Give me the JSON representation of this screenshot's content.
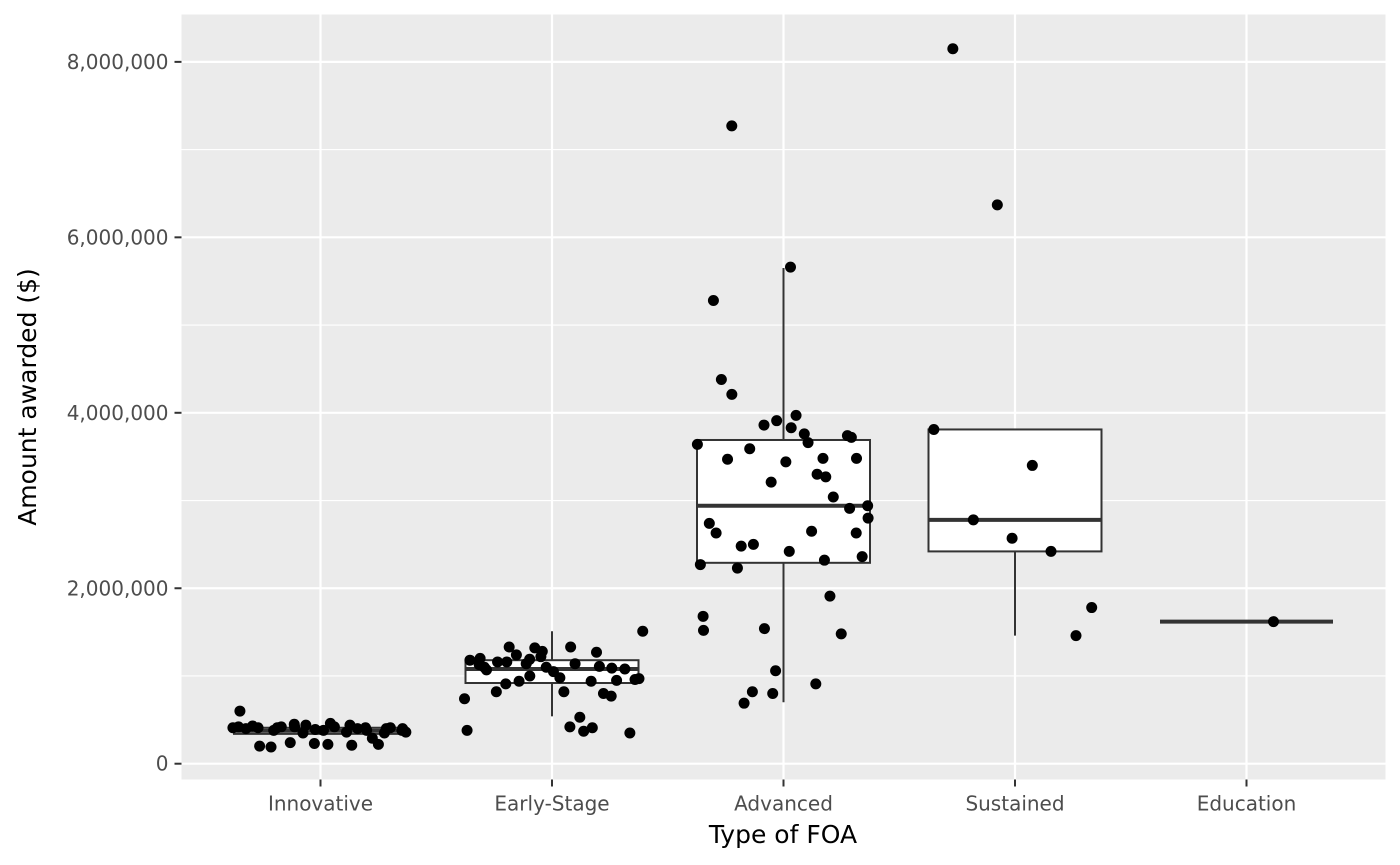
{
  "chart_data": {
    "type": "box",
    "xlabel": "Type of FOA",
    "ylabel": "Amount awarded ($)",
    "categories": [
      "Innovative",
      "Early-Stage",
      "Advanced",
      "Sustained",
      "Education"
    ],
    "y_ticks": [
      0,
      2000000,
      4000000,
      6000000,
      8000000
    ],
    "y_tick_labels": [
      "0",
      "2,000,000",
      "4,000,000",
      "6,000,000",
      "8,000,000"
    ],
    "ylim": [
      -180000,
      8540000
    ],
    "grid": true,
    "legend": "none",
    "colors": {
      "panel": "#ebebeb",
      "grid": "#ffffff",
      "box_fill": "#ffffff",
      "box_line": "#333333",
      "point": "#000000"
    },
    "boxes": [
      {
        "category": "Innovative",
        "lower_whisker": 330000,
        "q1": 340000,
        "median": 375000,
        "q3": 410000,
        "upper_whisker": 430000
      },
      {
        "category": "Early-Stage",
        "lower_whisker": 540000,
        "q1": 920000,
        "median": 1080000,
        "q3": 1180000,
        "upper_whisker": 1510000
      },
      {
        "category": "Advanced",
        "lower_whisker": 700000,
        "q1": 2290000,
        "median": 2940000,
        "q3": 3690000,
        "upper_whisker": 5650000
      },
      {
        "category": "Sustained",
        "lower_whisker": 1460000,
        "q1": 2420000,
        "median": 2780000,
        "q3": 3810000,
        "upper_whisker": 3810000
      },
      {
        "category": "Education",
        "lower_whisker": 1620000,
        "q1": 1620000,
        "median": 1620000,
        "q3": 1620000,
        "upper_whisker": 1620000
      }
    ],
    "points": [
      {
        "category": "Innovative",
        "values": [
          410000,
          420000,
          600000,
          400000,
          430000,
          410000,
          200000,
          190000,
          380000,
          410000,
          420000,
          240000,
          450000,
          420000,
          350000,
          440000,
          230000,
          390000,
          380000,
          220000,
          460000,
          420000,
          360000,
          210000,
          440000,
          400000,
          380000,
          410000,
          290000,
          220000,
          350000,
          400000,
          410000,
          380000,
          400000,
          360000
        ]
      },
      {
        "category": "Early-Stage",
        "values": [
          740000,
          380000,
          1180000,
          1130000,
          1200000,
          1100000,
          1070000,
          1160000,
          820000,
          910000,
          1160000,
          1330000,
          1240000,
          940000,
          1140000,
          1190000,
          1000000,
          1320000,
          1220000,
          1280000,
          1100000,
          1050000,
          980000,
          820000,
          1330000,
          420000,
          1140000,
          530000,
          370000,
          940000,
          410000,
          1270000,
          1110000,
          800000,
          1090000,
          770000,
          950000,
          1080000,
          350000,
          960000,
          970000,
          1510000
        ]
      },
      {
        "category": "Advanced",
        "values": [
          3640000,
          2270000,
          1520000,
          1680000,
          2740000,
          5280000,
          2630000,
          4380000,
          3470000,
          7270000,
          4210000,
          2480000,
          2230000,
          690000,
          3590000,
          820000,
          2500000,
          1540000,
          3860000,
          3210000,
          800000,
          1060000,
          3910000,
          3440000,
          5660000,
          2420000,
          3830000,
          3970000,
          3760000,
          3660000,
          2650000,
          3300000,
          910000,
          2320000,
          3480000,
          3270000,
          1910000,
          3040000,
          1480000,
          3740000,
          3720000,
          2910000,
          2630000,
          3480000,
          2360000,
          2940000,
          2800000
        ]
      },
      {
        "category": "Sustained",
        "values": [
          3810000,
          8150000,
          2780000,
          6370000,
          2570000,
          3400000,
          2420000,
          1460000,
          1780000
        ]
      },
      {
        "category": "Education",
        "values": [
          1620000
        ]
      }
    ]
  }
}
